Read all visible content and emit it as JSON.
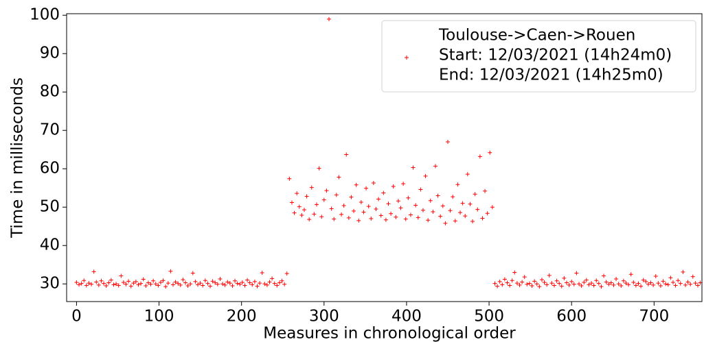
{
  "chart_data": {
    "type": "scatter",
    "x_label": "Measures in chronological order",
    "y_label": "Time in milliseconds",
    "xlim": [
      -12,
      758
    ],
    "ylim": [
      25.4,
      100.4
    ],
    "xticks": [
      0,
      100,
      200,
      300,
      400,
      500,
      600,
      700
    ],
    "yticks": [
      30,
      40,
      50,
      60,
      70,
      80,
      90,
      100
    ],
    "legend": "upper right",
    "x": [
      0,
      3,
      6,
      9,
      12,
      15,
      18,
      21,
      24,
      27,
      30,
      33,
      36,
      39,
      42,
      45,
      48,
      51,
      54,
      57,
      60,
      63,
      66,
      69,
      72,
      75,
      78,
      81,
      84,
      87,
      90,
      93,
      96,
      99,
      102,
      105,
      108,
      111,
      114,
      117,
      120,
      123,
      126,
      129,
      132,
      135,
      138,
      141,
      144,
      147,
      150,
      153,
      156,
      159,
      162,
      165,
      168,
      171,
      174,
      177,
      180,
      183,
      186,
      189,
      192,
      195,
      198,
      201,
      204,
      207,
      210,
      213,
      216,
      219,
      222,
      225,
      228,
      231,
      234,
      237,
      240,
      243,
      246,
      249,
      252,
      255,
      258,
      261,
      264,
      267,
      270,
      273,
      276,
      279,
      282,
      285,
      288,
      291,
      294,
      297,
      300,
      303,
      306,
      309,
      312,
      315,
      318,
      321,
      324,
      327,
      330,
      333,
      336,
      339,
      342,
      345,
      348,
      351,
      354,
      357,
      360,
      363,
      366,
      369,
      372,
      375,
      378,
      381,
      384,
      387,
      390,
      393,
      396,
      399,
      402,
      405,
      408,
      411,
      414,
      417,
      420,
      423,
      426,
      429,
      432,
      435,
      438,
      441,
      444,
      447,
      450,
      453,
      456,
      459,
      462,
      465,
      468,
      471,
      474,
      477,
      480,
      483,
      486,
      489,
      492,
      495,
      498,
      501,
      504,
      507,
      510,
      513,
      516,
      519,
      522,
      525,
      528,
      531,
      534,
      537,
      540,
      543,
      546,
      549,
      552,
      555,
      558,
      561,
      564,
      567,
      570,
      573,
      576,
      579,
      582,
      585,
      588,
      591,
      594,
      597,
      600,
      603,
      606,
      609,
      612,
      615,
      618,
      621,
      624,
      627,
      630,
      633,
      636,
      639,
      642,
      645,
      648,
      651,
      654,
      657,
      660,
      663,
      666,
      669,
      672,
      675,
      678,
      681,
      684,
      687,
      690,
      693,
      696,
      699,
      702,
      705,
      708,
      711,
      714,
      717,
      720,
      723,
      726,
      729,
      732,
      735,
      738,
      741,
      744,
      747,
      750,
      753,
      756
    ],
    "series": [
      {
        "name": [
          "Toulouse->Caen->Rouen",
          "Start: 12/03/2021 (14h24m0)",
          "End: 12/03/2021 (14h25m0)"
        ],
        "color": "#ff0000",
        "values": [
          30.4,
          29.8,
          30.1,
          30.9,
          29.6,
          30.2,
          29.9,
          33.2,
          30.5,
          29.7,
          30.8,
          30.1,
          29.5,
          30.3,
          31.0,
          29.8,
          30.0,
          29.6,
          32.1,
          30.4,
          29.9,
          30.7,
          29.4,
          30.2,
          30.6,
          29.8,
          30.1,
          31.2,
          29.5,
          30.3,
          29.9,
          30.8,
          30.0,
          29.6,
          30.4,
          30.9,
          29.3,
          30.2,
          33.3,
          29.8,
          30.5,
          30.1,
          29.7,
          31.1,
          30.3,
          29.5,
          30.0,
          32.8,
          30.6,
          29.8,
          30.2,
          29.6,
          30.9,
          30.1,
          29.4,
          30.7,
          30.3,
          29.9,
          31.3,
          30.0,
          29.7,
          30.5,
          30.2,
          29.5,
          30.8,
          30.1,
          29.9,
          30.4,
          29.6,
          31.0,
          30.3,
          29.8,
          30.6,
          29.4,
          30.2,
          32.9,
          30.0,
          29.7,
          30.5,
          31.4,
          30.1,
          29.6,
          30.3,
          30.8,
          29.9,
          32.7,
          57.4,
          51.2,
          48.5,
          53.6,
          50.1,
          47.9,
          49.3,
          52.8,
          46.8,
          55.1,
          48.2,
          50.7,
          60.1,
          47.5,
          51.9,
          54.3,
          99.0,
          49.6,
          46.9,
          53.2,
          57.8,
          48.1,
          50.4,
          63.7,
          47.2,
          52.6,
          49.0,
          55.8,
          46.5,
          51.3,
          48.7,
          54.9,
          50.2,
          47.0,
          56.3,
          49.5,
          52.1,
          47.8,
          53.7,
          46.7,
          50.9,
          48.3,
          55.4,
          47.4,
          51.6,
          49.8,
          56.1,
          46.9,
          52.4,
          48.0,
          60.3,
          50.5,
          47.3,
          54.6,
          49.2,
          58.1,
          46.6,
          51.7,
          48.8,
          60.7,
          53.0,
          47.6,
          50.3,
          45.8,
          67.0,
          49.1,
          52.7,
          46.4,
          55.9,
          48.6,
          51.0,
          47.7,
          58.6,
          50.8,
          46.3,
          53.4,
          49.4,
          63.2,
          47.1,
          54.2,
          48.4,
          64.2,
          50.0,
          30.1,
          29.4,
          30.6,
          29.8,
          31.2,
          30.3,
          29.6,
          30.9,
          33.0,
          30.2,
          29.7,
          30.5,
          31.8,
          29.9,
          30.1,
          29.5,
          30.7,
          30.0,
          29.3,
          31.1,
          30.4,
          29.8,
          32.2,
          30.2,
          29.6,
          30.8,
          30.1,
          29.4,
          31.5,
          30.3,
          29.7,
          30.6,
          29.9,
          32.8,
          30.0,
          29.5,
          30.4,
          31.0,
          29.8,
          30.2,
          29.6,
          30.9,
          30.1,
          29.3,
          32.1,
          30.5,
          29.9,
          30.3,
          29.7,
          31.3,
          30.0,
          29.5,
          30.8,
          30.2,
          29.8,
          32.5,
          30.4,
          29.6,
          30.1,
          29.4,
          31.0,
          30.6,
          29.9,
          30.3,
          29.7,
          32.0,
          30.2,
          29.5,
          30.7,
          30.0,
          29.8,
          31.6,
          30.4,
          29.6,
          30.9,
          30.1,
          33.1,
          29.7,
          30.5,
          29.9,
          31.9,
          30.2,
          29.6,
          30.3
        ]
      }
    ]
  }
}
